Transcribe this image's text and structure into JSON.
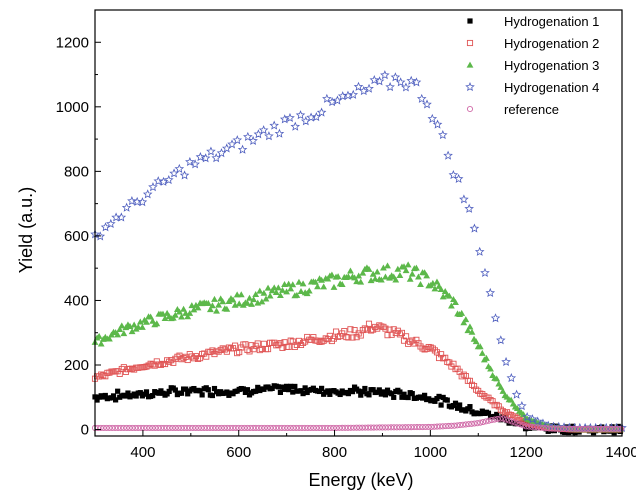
{
  "chart_data": {
    "type": "scatter",
    "xlabel": "Energy (keV)",
    "ylabel": "Yield (a.u.)",
    "xlim": [
      300,
      1400
    ],
    "ylim": [
      -20,
      1300
    ],
    "x_ticks": [
      400,
      600,
      800,
      1000,
      1200,
      1400
    ],
    "y_ticks": [
      0,
      200,
      400,
      600,
      800,
      1000,
      1200
    ],
    "grid": false,
    "legend_position": "top-right",
    "series": [
      {
        "name": "Hydrogenation 1",
        "marker": "filled-square",
        "color": "#000000",
        "x": [
          300,
          400,
          500,
          600,
          700,
          800,
          900,
          1000,
          1050,
          1100,
          1150,
          1200,
          1250,
          1300,
          1400
        ],
        "y": [
          100,
          110,
          120,
          120,
          125,
          120,
          115,
          100,
          75,
          55,
          35,
          10,
          2,
          0,
          0
        ]
      },
      {
        "name": "Hydrogenation 2",
        "marker": "open-square",
        "color": "#e05555",
        "x": [
          300,
          350,
          400,
          500,
          600,
          700,
          800,
          850,
          880,
          920,
          1000,
          1050,
          1100,
          1150,
          1200,
          1250,
          1300,
          1400
        ],
        "y": [
          160,
          180,
          200,
          225,
          250,
          265,
          290,
          300,
          320,
          300,
          250,
          195,
          120,
          60,
          20,
          5,
          0,
          0
        ]
      },
      {
        "name": "Hydrogenation 3",
        "marker": "filled-triangle",
        "color": "#5cb84a",
        "x": [
          300,
          350,
          400,
          500,
          600,
          700,
          800,
          850,
          900,
          950,
          1000,
          1050,
          1100,
          1150,
          1200,
          1250,
          1300,
          1400
        ],
        "y": [
          270,
          305,
          330,
          370,
          400,
          430,
          460,
          480,
          485,
          490,
          460,
          390,
          260,
          120,
          35,
          8,
          0,
          0
        ]
      },
      {
        "name": "Hydrogenation 4",
        "marker": "open-star",
        "color": "#4f5fbf",
        "x": [
          300,
          340,
          400,
          500,
          600,
          700,
          800,
          850,
          900,
          940,
          980,
          1000,
          1050,
          1080,
          1100,
          1130,
          1150,
          1180,
          1200,
          1250,
          1300,
          1400
        ],
        "y": [
          600,
          650,
          720,
          820,
          880,
          950,
          1010,
          1040,
          1070,
          1090,
          1050,
          1000,
          800,
          680,
          580,
          390,
          250,
          110,
          40,
          10,
          5,
          5
        ]
      },
      {
        "name": "reference",
        "marker": "open-circle",
        "color": "#d06aa8",
        "x": [
          300,
          400,
          600,
          800,
          1000,
          1050,
          1100,
          1130,
          1150,
          1180,
          1200,
          1250,
          1300,
          1400
        ],
        "y": [
          5,
          5,
          5,
          5,
          8,
          12,
          20,
          30,
          35,
          20,
          10,
          3,
          2,
          2
        ]
      }
    ]
  }
}
